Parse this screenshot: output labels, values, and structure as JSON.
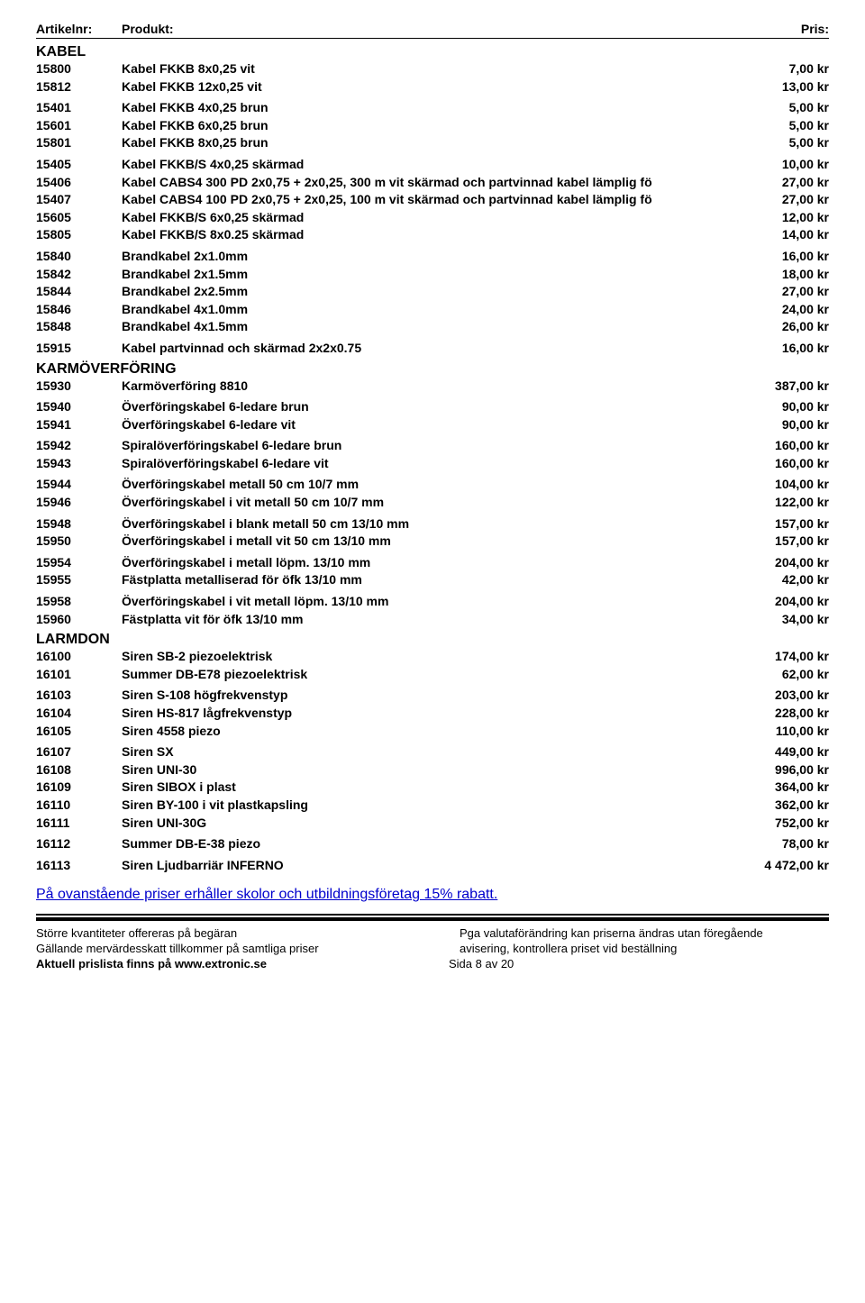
{
  "header": {
    "art": "Artikelnr:",
    "prod": "Produkt:",
    "price": "Pris:"
  },
  "sections": [
    {
      "title": "KABEL",
      "groups": [
        [
          {
            "art": "15800",
            "prod": "Kabel FKKB 8x0,25 vit",
            "price": "7,00 kr"
          },
          {
            "art": "15812",
            "prod": "Kabel FKKB 12x0,25 vit",
            "price": "13,00 kr"
          }
        ],
        [
          {
            "art": "15401",
            "prod": "Kabel FKKB 4x0,25 brun",
            "price": "5,00 kr"
          },
          {
            "art": "15601",
            "prod": "Kabel FKKB 6x0,25 brun",
            "price": "5,00 kr"
          },
          {
            "art": "15801",
            "prod": "Kabel FKKB 8x0,25 brun",
            "price": "5,00 kr"
          }
        ],
        [
          {
            "art": "15405",
            "prod": "Kabel FKKB/S 4x0,25 skärmad",
            "price": "10,00 kr"
          },
          {
            "art": "15406",
            "prod": "Kabel CABS4 300 PD 2x0,75 + 2x0,25, 300 m vit skärmad och partvinnad kabel lämplig fö",
            "price": "27,00 kr"
          },
          {
            "art": "15407",
            "prod": "Kabel CABS4 100 PD 2x0,75 + 2x0,25, 100 m vit skärmad och partvinnad kabel lämplig fö",
            "price": "27,00 kr"
          },
          {
            "art": "15605",
            "prod": "Kabel FKKB/S 6x0,25 skärmad",
            "price": "12,00 kr"
          },
          {
            "art": "15805",
            "prod": "Kabel FKKB/S 8x0.25 skärmad",
            "price": "14,00 kr"
          }
        ],
        [
          {
            "art": "15840",
            "prod": "Brandkabel 2x1.0mm",
            "price": "16,00 kr"
          },
          {
            "art": "15842",
            "prod": "Brandkabel 2x1.5mm",
            "price": "18,00 kr"
          },
          {
            "art": "15844",
            "prod": "Brandkabel 2x2.5mm",
            "price": "27,00 kr"
          },
          {
            "art": "15846",
            "prod": "Brandkabel 4x1.0mm",
            "price": "24,00 kr"
          },
          {
            "art": "15848",
            "prod": "Brandkabel 4x1.5mm",
            "price": "26,00 kr"
          }
        ],
        [
          {
            "art": "15915",
            "prod": "Kabel partvinnad och skärmad 2x2x0.75",
            "price": "16,00 kr"
          }
        ]
      ]
    },
    {
      "title": "KARMÖVERFÖRING",
      "groups": [
        [
          {
            "art": "15930",
            "prod": "Karmöverföring 8810",
            "price": "387,00 kr"
          }
        ],
        [
          {
            "art": "15940",
            "prod": "Överföringskabel 6-ledare brun",
            "price": "90,00 kr"
          },
          {
            "art": "15941",
            "prod": "Överföringskabel 6-ledare vit",
            "price": "90,00 kr"
          }
        ],
        [
          {
            "art": "15942",
            "prod": "Spiralöverföringskabel 6-ledare brun",
            "price": "160,00 kr"
          },
          {
            "art": "15943",
            "prod": "Spiralöverföringskabel 6-ledare vit",
            "price": "160,00 kr"
          }
        ],
        [
          {
            "art": "15944",
            "prod": "Överföringskabel metall 50 cm 10/7 mm",
            "price": "104,00 kr"
          },
          {
            "art": "15946",
            "prod": "Överföringskabel i vit metall 50 cm 10/7 mm",
            "price": "122,00 kr"
          }
        ],
        [
          {
            "art": "15948",
            "prod": "Överföringskabel i blank metall 50 cm 13/10 mm",
            "price": "157,00 kr"
          },
          {
            "art": "15950",
            "prod": "Överföringskabel i metall vit 50 cm 13/10 mm",
            "price": "157,00 kr"
          }
        ],
        [
          {
            "art": "15954",
            "prod": "Överföringskabel i metall löpm. 13/10 mm",
            "price": "204,00 kr"
          },
          {
            "art": "15955",
            "prod": "Fästplatta metalliserad för öfk 13/10 mm",
            "price": "42,00 kr"
          }
        ],
        [
          {
            "art": "15958",
            "prod": "Överföringskabel i vit metall löpm. 13/10 mm",
            "price": "204,00 kr"
          },
          {
            "art": "15960",
            "prod": "Fästplatta vit för öfk 13/10 mm",
            "price": "34,00 kr"
          }
        ]
      ]
    },
    {
      "title": "LARMDON",
      "groups": [
        [
          {
            "art": "16100",
            "prod": "Siren SB-2 piezoelektrisk",
            "price": "174,00 kr"
          },
          {
            "art": "16101",
            "prod": "Summer DB-E78 piezoelektrisk",
            "price": "62,00 kr"
          }
        ],
        [
          {
            "art": "16103",
            "prod": "Siren S-108 högfrekvenstyp",
            "price": "203,00 kr"
          },
          {
            "art": "16104",
            "prod": "Siren HS-817 lågfrekvenstyp",
            "price": "228,00 kr"
          },
          {
            "art": "16105",
            "prod": "Siren 4558 piezo",
            "price": "110,00 kr"
          }
        ],
        [
          {
            "art": "16107",
            "prod": "Siren SX",
            "price": "449,00 kr"
          },
          {
            "art": "16108",
            "prod": "Siren UNI-30",
            "price": "996,00 kr"
          },
          {
            "art": "16109",
            "prod": "Siren SIBOX i plast",
            "price": "364,00 kr"
          },
          {
            "art": "16110",
            "prod": "Siren BY-100 i vit plastkapsling",
            "price": "362,00 kr"
          },
          {
            "art": "16111",
            "prod": "Siren UNI-30G",
            "price": "752,00 kr"
          }
        ],
        [
          {
            "art": "16112",
            "prod": "Summer DB-E-38 piezo",
            "price": "78,00 kr"
          }
        ],
        [
          {
            "art": "16113",
            "prod": "Siren Ljudbarriär INFERNO",
            "price": "4 472,00 kr"
          }
        ]
      ]
    }
  ],
  "discount": "På ovanstående priser erhåller skolor och utbildningsföretag 15% rabatt.",
  "footer": {
    "left1": "Större kvantiteter offereras på begäran",
    "left2": "Gällande mervärdesskatt tillkommer på samtliga priser",
    "right1": "Pga valutaförändring kan priserna ändras utan föregående",
    "right2": "avisering, kontrollera priset vid beställning",
    "bottom_left": "Aktuell prislista finns på www.extronic.se",
    "bottom_mid": "Sida 8 av 20"
  }
}
